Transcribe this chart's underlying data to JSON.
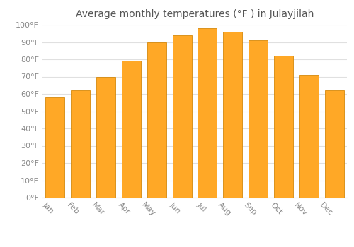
{
  "months": [
    "Jan",
    "Feb",
    "Mar",
    "Apr",
    "May",
    "Jun",
    "Jul",
    "Aug",
    "Sep",
    "Oct",
    "Nov",
    "Dec"
  ],
  "values": [
    58,
    62,
    70,
    79,
    90,
    94,
    98,
    96,
    91,
    82,
    71,
    62
  ],
  "bar_color": "#FFA826",
  "bar_edge_color": "#D4880A",
  "title": "Average monthly temperatures (°F ) in Julayjilah",
  "ylim": [
    0,
    100
  ],
  "yticks": [
    0,
    10,
    20,
    30,
    40,
    50,
    60,
    70,
    80,
    90,
    100
  ],
  "ytick_labels": [
    "0°F",
    "10°F",
    "20°F",
    "30°F",
    "40°F",
    "50°F",
    "60°F",
    "70°F",
    "80°F",
    "90°F",
    "100°F"
  ],
  "background_color": "#ffffff",
  "grid_color": "#e0e0e0",
  "title_fontsize": 10,
  "tick_fontsize": 8,
  "xlabel_rotation": -45,
  "bar_width": 0.75
}
